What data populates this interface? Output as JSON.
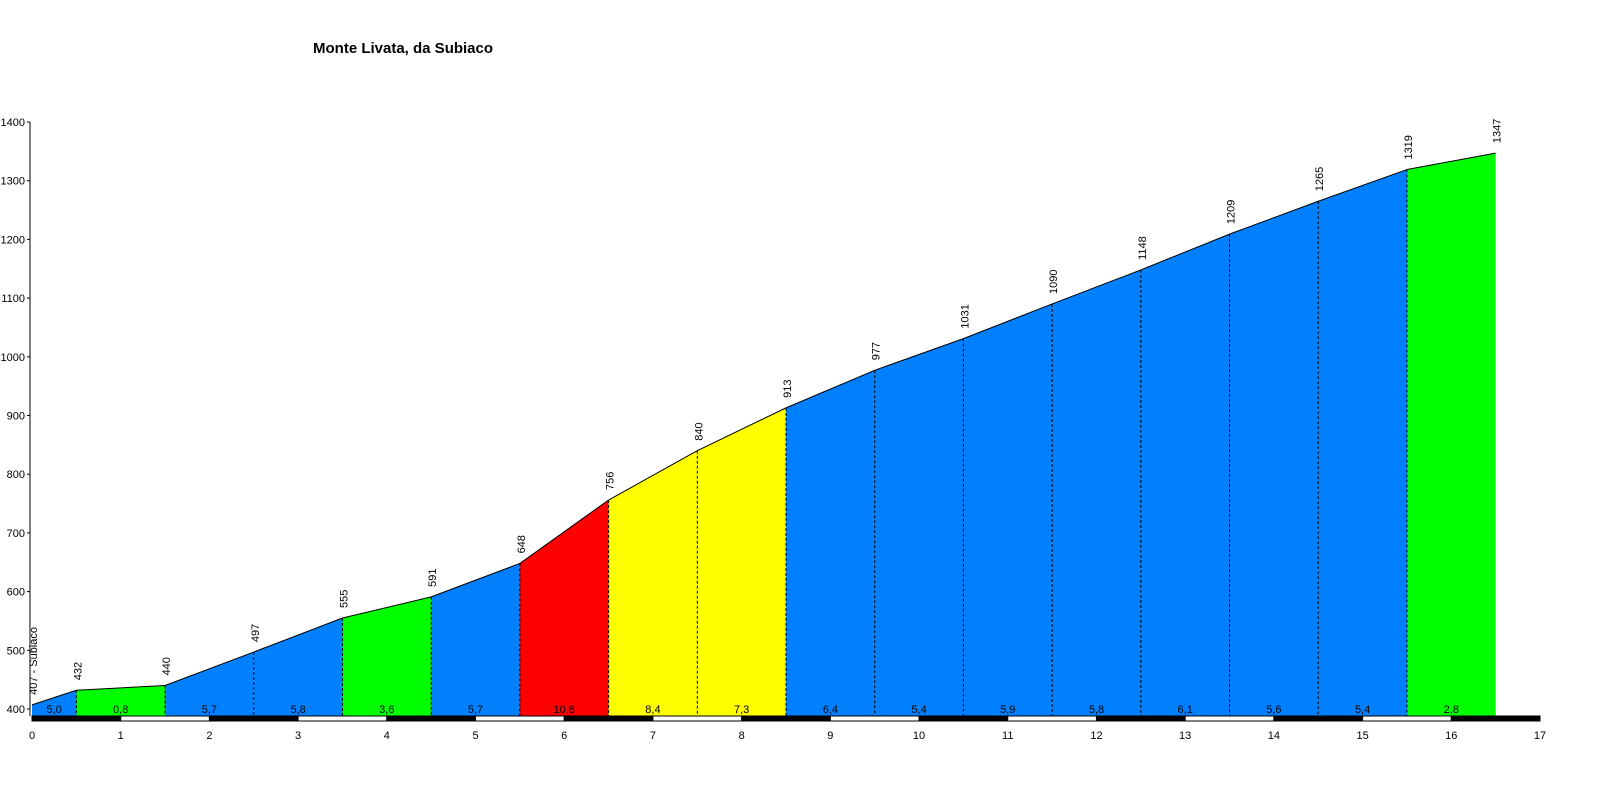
{
  "chart_data": {
    "type": "profile",
    "title": "Monte Livata, da Subiaco",
    "x": [
      0,
      0.5,
      1.5,
      2.5,
      3.5,
      4.5,
      5.5,
      6.5,
      7.5,
      8.5,
      9.5,
      10.5,
      11.5,
      12.5,
      13.5,
      14.5,
      15.5,
      16.5
    ],
    "values": [
      407,
      432,
      440,
      497,
      555,
      591,
      648,
      756,
      840,
      913,
      977,
      1031,
      1090,
      1148,
      1209,
      1265,
      1319,
      1347
    ],
    "value_labels": [
      "407 - Subiaco",
      "432",
      "440",
      "497",
      "555",
      "591",
      "648",
      "756",
      "840",
      "913",
      "977",
      "1031",
      "1090",
      "1148",
      "1209",
      "1265",
      "1319",
      "1347"
    ],
    "segments": {
      "values": [
        5.0,
        0.8,
        5.7,
        5.8,
        3.6,
        5.7,
        10.8,
        8.4,
        7.3,
        6.4,
        5.4,
        5.9,
        5.8,
        6.1,
        5.6,
        5.4,
        2.8
      ],
      "value_labels": [
        "5,0",
        "0,8",
        "5,7",
        "5,8",
        "3,6",
        "5,7",
        "10,8",
        "8,4",
        "7,3",
        "6,4",
        "5,4",
        "5,9",
        "5,8",
        "6,1",
        "5,6",
        "5,4",
        "2,8"
      ],
      "colors": [
        "#0080ff",
        "#00ff00",
        "#0080ff",
        "#0080ff",
        "#00ff00",
        "#0080ff",
        "#ff0000",
        "#ffff00",
        "#ffff00",
        "#0080ff",
        "#0080ff",
        "#0080ff",
        "#0080ff",
        "#0080ff",
        "#0080ff",
        "#0080ff",
        "#00ff00"
      ]
    },
    "xlim": [
      0,
      17
    ],
    "xticks": [
      0,
      1,
      2,
      3,
      4,
      5,
      6,
      7,
      8,
      9,
      10,
      11,
      12,
      13,
      14,
      15,
      16,
      17
    ],
    "ylim": [
      400,
      1400
    ],
    "yticks": [
      400,
      500,
      600,
      700,
      800,
      900,
      1000,
      1100,
      1200,
      1300,
      1400
    ]
  }
}
